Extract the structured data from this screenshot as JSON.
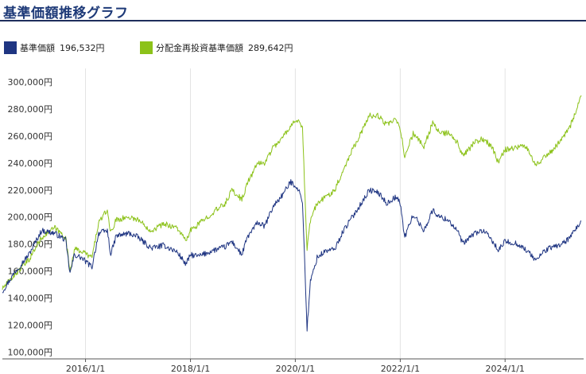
{
  "title": "基準価額推移グラフ",
  "legend": [
    {
      "label": "基準価額",
      "value": "196,532円",
      "color": "#1f3582"
    },
    {
      "label": "分配金再投資基準価額",
      "value": "289,642円",
      "color": "#8cc21a"
    }
  ],
  "chart_data": {
    "type": "line",
    "y_tick_labels": [
      "100,000円",
      "120,000円",
      "140,000円",
      "160,000円",
      "180,000円",
      "200,000円",
      "220,000円",
      "240,000円",
      "260,000円",
      "280,000円",
      "300,000円"
    ],
    "x_tick_labels": [
      "2016/1/1",
      "2018/1/1",
      "2020/1/1",
      "2022/1/1",
      "2024/1/1"
    ],
    "ylim": [
      95000,
      310000
    ],
    "xlim": [
      "2014-06-01",
      "2025-07-01"
    ],
    "grid": "vertical",
    "series": [
      {
        "name": "基準価額",
        "color": "#1f3582",
        "points": [
          [
            "2014-06-01",
            145000
          ],
          [
            "2014-09-01",
            160000
          ],
          [
            "2014-12-01",
            172000
          ],
          [
            "2015-03-01",
            190000
          ],
          [
            "2015-06-01",
            188000
          ],
          [
            "2015-08-15",
            183000
          ],
          [
            "2015-09-15",
            158000
          ],
          [
            "2015-10-15",
            172000
          ],
          [
            "2015-12-01",
            170000
          ],
          [
            "2016-02-15",
            163000
          ],
          [
            "2016-04-01",
            188000
          ],
          [
            "2016-06-01",
            190000
          ],
          [
            "2016-06-25",
            172000
          ],
          [
            "2016-08-01",
            186000
          ],
          [
            "2016-11-01",
            188000
          ],
          [
            "2017-01-01",
            185000
          ],
          [
            "2017-04-01",
            177000
          ],
          [
            "2017-07-01",
            179000
          ],
          [
            "2017-10-01",
            174000
          ],
          [
            "2017-12-01",
            165000
          ],
          [
            "2018-01-01",
            172000
          ],
          [
            "2018-03-01",
            171000
          ],
          [
            "2018-06-01",
            175000
          ],
          [
            "2018-09-01",
            178000
          ],
          [
            "2018-10-15",
            182000
          ],
          [
            "2018-12-25",
            172000
          ],
          [
            "2019-02-01",
            185000
          ],
          [
            "2019-04-15",
            196000
          ],
          [
            "2019-06-01",
            193000
          ],
          [
            "2019-08-01",
            208000
          ],
          [
            "2019-10-01",
            216000
          ],
          [
            "2019-12-01",
            226000
          ],
          [
            "2020-01-15",
            222000
          ],
          [
            "2020-02-20",
            212000
          ],
          [
            "2020-03-23",
            117000
          ],
          [
            "2020-04-15",
            152000
          ],
          [
            "2020-06-01",
            170000
          ],
          [
            "2020-08-01",
            175000
          ],
          [
            "2020-10-01",
            176000
          ],
          [
            "2020-12-01",
            190000
          ],
          [
            "2021-02-01",
            200000
          ],
          [
            "2021-04-15",
            212000
          ],
          [
            "2021-06-01",
            220000
          ],
          [
            "2021-08-01",
            218000
          ],
          [
            "2021-10-01",
            210000
          ],
          [
            "2021-12-01",
            215000
          ],
          [
            "2022-01-01",
            210000
          ],
          [
            "2022-02-01",
            185000
          ],
          [
            "2022-04-01",
            202000
          ],
          [
            "2022-06-15",
            190000
          ],
          [
            "2022-08-15",
            205000
          ],
          [
            "2022-10-01",
            200000
          ],
          [
            "2022-12-01",
            198000
          ],
          [
            "2023-02-01",
            190000
          ],
          [
            "2023-03-15",
            180000
          ],
          [
            "2023-06-01",
            188000
          ],
          [
            "2023-08-01",
            190000
          ],
          [
            "2023-10-01",
            183000
          ],
          [
            "2023-11-15",
            175000
          ],
          [
            "2024-01-01",
            182000
          ],
          [
            "2024-04-01",
            180000
          ],
          [
            "2024-06-01",
            175000
          ],
          [
            "2024-08-05",
            168000
          ],
          [
            "2024-10-01",
            175000
          ],
          [
            "2024-12-01",
            178000
          ],
          [
            "2025-02-01",
            180000
          ],
          [
            "2025-04-01",
            185000
          ],
          [
            "2025-06-15",
            197000
          ]
        ]
      },
      {
        "name": "分配金再投資基準価額",
        "color": "#8cc21a",
        "points": [
          [
            "2014-06-01",
            147000
          ],
          [
            "2014-09-01",
            158000
          ],
          [
            "2014-12-01",
            168000
          ],
          [
            "2015-03-01",
            185000
          ],
          [
            "2015-06-01",
            192000
          ],
          [
            "2015-08-15",
            185000
          ],
          [
            "2015-09-15",
            160000
          ],
          [
            "2015-10-15",
            176000
          ],
          [
            "2015-12-01",
            175000
          ],
          [
            "2016-02-15",
            170000
          ],
          [
            "2016-04-01",
            196000
          ],
          [
            "2016-06-01",
            205000
          ],
          [
            "2016-06-25",
            188000
          ],
          [
            "2016-08-01",
            198000
          ],
          [
            "2016-11-01",
            200000
          ],
          [
            "2017-01-01",
            198000
          ],
          [
            "2017-04-01",
            190000
          ],
          [
            "2017-07-01",
            195000
          ],
          [
            "2017-10-01",
            192000
          ],
          [
            "2017-12-01",
            182000
          ],
          [
            "2018-01-01",
            190000
          ],
          [
            "2018-03-01",
            195000
          ],
          [
            "2018-06-01",
            203000
          ],
          [
            "2018-09-01",
            210000
          ],
          [
            "2018-10-15",
            220000
          ],
          [
            "2018-12-25",
            213000
          ],
          [
            "2019-02-01",
            225000
          ],
          [
            "2019-04-15",
            240000
          ],
          [
            "2019-06-01",
            240000
          ],
          [
            "2019-08-01",
            252000
          ],
          [
            "2019-10-01",
            258000
          ],
          [
            "2019-12-01",
            268000
          ],
          [
            "2020-01-15",
            272000
          ],
          [
            "2020-02-20",
            265000
          ],
          [
            "2020-03-23",
            175000
          ],
          [
            "2020-04-15",
            198000
          ],
          [
            "2020-06-01",
            210000
          ],
          [
            "2020-08-01",
            215000
          ],
          [
            "2020-10-01",
            220000
          ],
          [
            "2020-12-01",
            235000
          ],
          [
            "2021-02-01",
            250000
          ],
          [
            "2021-04-15",
            265000
          ],
          [
            "2021-06-01",
            275000
          ],
          [
            "2021-08-01",
            275000
          ],
          [
            "2021-10-01",
            268000
          ],
          [
            "2021-12-01",
            272000
          ],
          [
            "2022-01-01",
            265000
          ],
          [
            "2022-02-01",
            245000
          ],
          [
            "2022-04-01",
            262000
          ],
          [
            "2022-06-15",
            252000
          ],
          [
            "2022-08-15",
            270000
          ],
          [
            "2022-10-01",
            262000
          ],
          [
            "2022-12-01",
            262000
          ],
          [
            "2023-02-01",
            255000
          ],
          [
            "2023-03-15",
            245000
          ],
          [
            "2023-06-01",
            255000
          ],
          [
            "2023-08-01",
            258000
          ],
          [
            "2023-10-01",
            252000
          ],
          [
            "2023-11-15",
            240000
          ],
          [
            "2024-01-01",
            250000
          ],
          [
            "2024-04-01",
            252000
          ],
          [
            "2024-06-01",
            252000
          ],
          [
            "2024-08-05",
            238000
          ],
          [
            "2024-10-01",
            245000
          ],
          [
            "2024-12-01",
            250000
          ],
          [
            "2025-02-01",
            258000
          ],
          [
            "2025-04-01",
            268000
          ],
          [
            "2025-06-15",
            290000
          ]
        ]
      }
    ]
  }
}
